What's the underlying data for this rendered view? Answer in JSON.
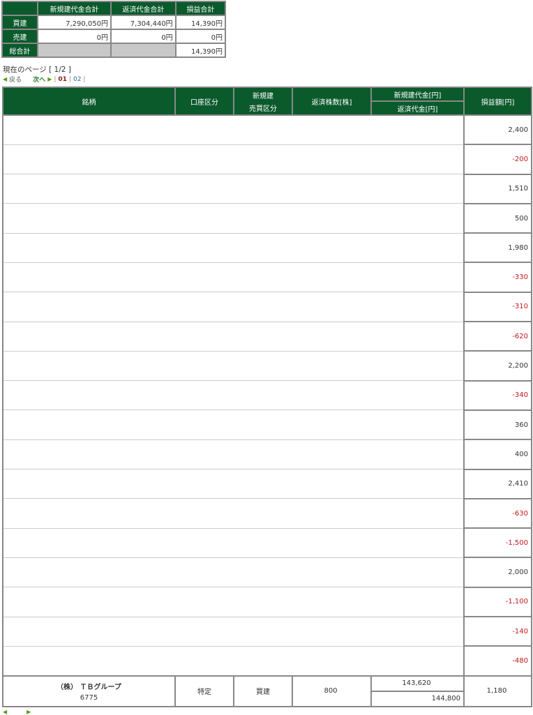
{
  "summary": {
    "headers": [
      "",
      "新規建代金合計",
      "返済代金合計",
      "損益合計"
    ],
    "rows": [
      {
        "label": "買建",
        "new": "7,290,050円",
        "repay": "7,304,440円",
        "pl": "14,390円"
      },
      {
        "label": "売建",
        "new": "0円",
        "repay": "0円",
        "pl": "0円"
      },
      {
        "label": "総合計",
        "new": "",
        "repay": "",
        "pl": "14,390円"
      }
    ]
  },
  "pagination": {
    "current_page_text": "現在のページ [ 1/2 ]",
    "back": "戻る",
    "next": "次へ",
    "pages": [
      "01",
      "02"
    ],
    "current": "01"
  },
  "table": {
    "headers": {
      "name": "銘柄",
      "account": "口座区分",
      "side_top": "新規建",
      "side_bottom": "売買区分",
      "qty": "返済株数[株]",
      "new_amount": "新規建代金[円]",
      "repay_amount": "返済代金[円]",
      "pl": "損益額[円]"
    },
    "pl_values": [
      "2,400",
      "-200",
      "1,510",
      "500",
      "1,980",
      "-330",
      "-310",
      "-620",
      "2,200",
      "-340",
      "360",
      "400",
      "2,410",
      "-630",
      "-1,500",
      "2,000",
      "-1,100",
      "-140",
      "-480"
    ],
    "last_row": {
      "name": "（株） ＴＢグループ",
      "code": "6775",
      "account": "特定",
      "side": "買建",
      "qty": "800",
      "new_amount": "143,620",
      "repay_amount": "144,800",
      "pl": "1,180"
    }
  },
  "colors": {
    "header_green": "#0b5a2c",
    "negative": "#c0181c"
  }
}
